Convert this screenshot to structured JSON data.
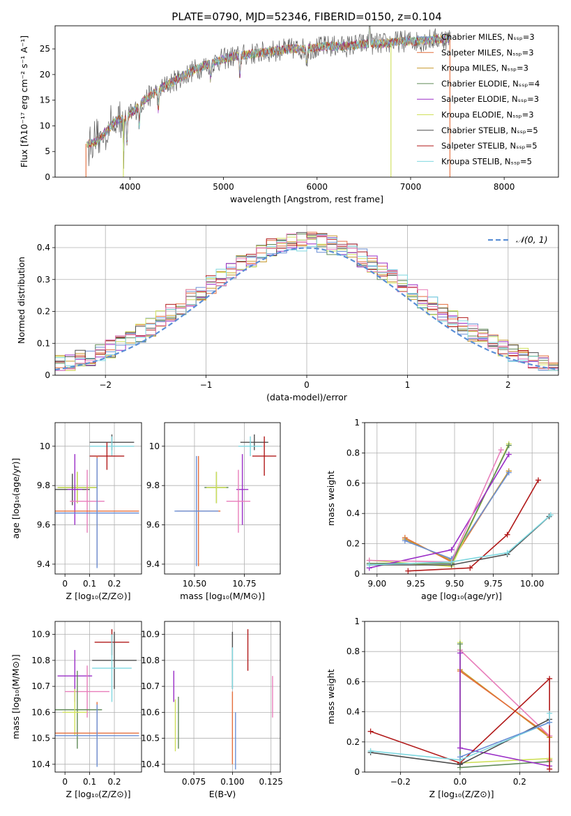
{
  "colors": {
    "Chabrier MILES": "#6a8fd6",
    "Salpeter MILES": "#e46e3c",
    "Kroupa MILES": "#c79a2e",
    "Chabrier ELODIE": "#5f8a57",
    "Salpeter ELODIE": "#9a2dc7",
    "Kroupa ELODIE": "#cfe05a",
    "Chabrier STELIB": "#4d4d4d",
    "Salpeter STELIB": "#b11919",
    "Kroupa STELIB": "#7fd8e0",
    "pink": "#e87ebb",
    "normal": "#5b8fd6"
  },
  "chart_data": [
    {
      "id": "spectrum",
      "type": "line",
      "title": "PLATE=0790, MJD=52346, FIBERID=0150, z=0.104",
      "xlabel": "wavelength [Angstrom, rest frame]",
      "ylabel": "Flux [fλ10⁻¹⁷ erg cm⁻² s⁻¹ A⁻¹]",
      "xlim": [
        3200,
        8580
      ],
      "ylim": [
        0,
        29.5
      ],
      "xticks": [
        4000,
        5000,
        6000,
        7000,
        8000
      ],
      "yticks": [
        0,
        5,
        10,
        15,
        20,
        25
      ],
      "grid": false,
      "legend_position": "right",
      "legend": [
        {
          "name": "Chabrier MILES, Nₛₛₚ=3",
          "color_key": "Chabrier MILES"
        },
        {
          "name": "Salpeter MILES, Nₛₛₚ=3",
          "color_key": "Salpeter MILES"
        },
        {
          "name": "Kroupa MILES, Nₛₛₚ=3",
          "color_key": "Kroupa MILES"
        },
        {
          "name": "Chabrier ELODIE, Nₛₛₚ=4",
          "color_key": "Chabrier ELODIE"
        },
        {
          "name": "Salpeter ELODIE, Nₛₛₚ=3",
          "color_key": "Salpeter ELODIE"
        },
        {
          "name": "Kroupa ELODIE, Nₛₛₚ=3",
          "color_key": "Kroupa ELODIE"
        },
        {
          "name": "Chabrier STELIB, Nₛₛₚ=5",
          "color_key": "Chabrier STELIB"
        },
        {
          "name": "Salpeter STELIB, Nₛₛₚ=5",
          "color_key": "Salpeter STELIB"
        },
        {
          "name": "Kroupa STELIB, Nₛₛₚ=5",
          "color_key": "Kroupa STELIB"
        }
      ],
      "continuum": [
        [
          3550,
          6.5
        ],
        [
          3650,
          7
        ],
        [
          3750,
          9
        ],
        [
          3850,
          11
        ],
        [
          3950,
          11.5
        ],
        [
          4050,
          13
        ],
        [
          4150,
          15
        ],
        [
          4300,
          17
        ],
        [
          4500,
          19
        ],
        [
          4700,
          21
        ],
        [
          4900,
          22.5
        ],
        [
          5100,
          23.5
        ],
        [
          5300,
          24
        ],
        [
          5500,
          24.5
        ],
        [
          5700,
          25
        ],
        [
          5900,
          25
        ],
        [
          6100,
          25.5
        ],
        [
          6300,
          25.5
        ],
        [
          6500,
          26
        ],
        [
          6700,
          26
        ],
        [
          6900,
          26.5
        ],
        [
          7100,
          26.5
        ],
        [
          7300,
          27
        ],
        [
          7400,
          27
        ]
      ],
      "dips": [
        {
          "series": "Salpeter MILES",
          "x": [
            3530,
            7420
          ]
        },
        {
          "series": "Kroupa ELODIE",
          "x": [
            3930,
            6790
          ]
        }
      ],
      "features": [
        [
          3933,
          -6
        ],
        [
          3968,
          -5
        ],
        [
          4101,
          -4
        ],
        [
          4304,
          -4
        ],
        [
          4861,
          -3
        ],
        [
          5175,
          -4
        ],
        [
          5890,
          -3
        ],
        [
          6563,
          5
        ]
      ]
    },
    {
      "id": "residuals",
      "type": "histogram",
      "xlabel": "(data-model)/error",
      "ylabel": "Normed distribution",
      "xlim": [
        -2.5,
        2.5
      ],
      "ylim": [
        0,
        0.47
      ],
      "xticks": [
        -2,
        -1,
        0,
        1,
        2
      ],
      "yticks": [
        0.0,
        0.1,
        0.2,
        0.3,
        0.4
      ],
      "grid": true,
      "legend_position": "top-right",
      "bin_width": 0.1,
      "reference_label": "𝒩(0, 1)"
    },
    {
      "id": "age-vs-Z",
      "type": "errorbar",
      "xlabel": "Z [log₁₀(Z/Z⊙)]",
      "ylabel": "age  [log₁₀(age/yr)]",
      "xlim": [
        -0.04,
        0.31
      ],
      "ylim": [
        9.35,
        10.12
      ],
      "xticks": [
        0.0,
        0.1,
        0.2
      ],
      "yticks": [
        9.4,
        9.6,
        9.8,
        10.0
      ],
      "grid": true,
      "points": [
        {
          "c": "Chabrier STELIB",
          "x": 0.19,
          "xerr": 0.09,
          "y": 10.02,
          "yerr": 0.04
        },
        {
          "c": "Kroupa STELIB",
          "x": 0.19,
          "xerr": 0.09,
          "y": 10.0,
          "yerr": 0.05
        },
        {
          "c": "Salpeter STELIB",
          "x": 0.17,
          "xerr": 0.07,
          "y": 9.95,
          "yerr": 0.07
        },
        {
          "c": "Chabrier ELODIE",
          "x": 0.05,
          "xerr": 0.08,
          "y": 9.79,
          "yerr": 0.08
        },
        {
          "c": "Kroupa ELODIE",
          "x": 0.05,
          "xerr": 0.08,
          "y": 9.79,
          "yerr": 0.08
        },
        {
          "c": "Chabrier STELIB",
          "x": 0.03,
          "xerr": 0.07,
          "y": 9.78,
          "yerr": 0.08
        },
        {
          "c": "Salpeter ELODIE",
          "x": 0.04,
          "xerr": 0.03,
          "y": 9.78,
          "yerr": 0.18
        },
        {
          "c": "pink",
          "x": 0.09,
          "xerr": 0.07,
          "y": 9.72,
          "yerr": 0.16
        },
        {
          "c": "Salpeter MILES",
          "x": 0.13,
          "xerr": 0.17,
          "y": 9.67,
          "yerr": 0.28
        },
        {
          "c": "Chabrier MILES",
          "x": 0.13,
          "xerr": 0.17,
          "y": 9.66,
          "yerr": 0.28
        }
      ]
    },
    {
      "id": "age-vs-mass",
      "type": "errorbar",
      "xlabel": "mass [log₁₀(M/M⊙)]",
      "ylabel": "",
      "xlim": [
        10.35,
        10.93
      ],
      "ylim": [
        9.35,
        10.12
      ],
      "xticks": [
        10.5,
        10.75
      ],
      "xticklabels": [
        "10.50",
        "10.75"
      ],
      "yticks": [
        9.4,
        9.6,
        9.8,
        10.0
      ],
      "grid": true,
      "points": [
        {
          "c": "Chabrier STELIB",
          "x": 10.8,
          "xerr": 0.07,
          "y": 10.02,
          "yerr": 0.04
        },
        {
          "c": "Kroupa STELIB",
          "x": 10.78,
          "xerr": 0.06,
          "y": 10.0,
          "yerr": 0.05
        },
        {
          "c": "Salpeter STELIB",
          "x": 10.85,
          "xerr": 0.06,
          "y": 9.95,
          "yerr": 0.1
        },
        {
          "c": "Chabrier ELODIE",
          "x": 10.61,
          "xerr": 0.06,
          "y": 9.79,
          "yerr": 0.08
        },
        {
          "c": "Kroupa ELODIE",
          "x": 10.61,
          "xerr": 0.05,
          "y": 9.79,
          "yerr": 0.08
        },
        {
          "c": "Salpeter ELODIE",
          "x": 10.74,
          "xerr": 0.03,
          "y": 9.78,
          "yerr": 0.18
        },
        {
          "c": "pink",
          "x": 10.72,
          "xerr": 0.06,
          "y": 9.72,
          "yerr": 0.16
        },
        {
          "c": "Salpeter MILES",
          "x": 10.52,
          "xerr": 0.11,
          "y": 9.67,
          "yerr": 0.28
        },
        {
          "c": "Chabrier MILES",
          "x": 10.51,
          "xerr": 0.11,
          "y": 9.67,
          "yerr": 0.28
        }
      ]
    },
    {
      "id": "weight-vs-age",
      "type": "line",
      "xlabel": "age  [log₁₀(age/yr)]",
      "ylabel": "mass weight",
      "xlim": [
        8.92,
        10.17
      ],
      "ylim": [
        0,
        1.0
      ],
      "xticks": [
        9.0,
        9.25,
        9.5,
        9.75,
        10.0
      ],
      "xticklabels": [
        "9.00",
        "9.25",
        "9.50",
        "9.75",
        "10.00"
      ],
      "yticks": [
        0.0,
        0.2,
        0.4,
        0.6,
        0.8,
        1.0
      ],
      "grid": true,
      "series": [
        {
          "c": "Salpeter MILES",
          "x": [
            9.18,
            9.48,
            9.85
          ],
          "y": [
            0.24,
            0.08,
            0.68
          ]
        },
        {
          "c": "Kroupa MILES",
          "x": [
            9.18,
            9.48,
            9.85
          ],
          "y": [
            0.23,
            0.09,
            0.68
          ]
        },
        {
          "c": "Chabrier MILES",
          "x": [
            9.18,
            9.48,
            9.85
          ],
          "y": [
            0.22,
            0.1,
            0.67
          ]
        },
        {
          "c": "Kroupa ELODIE",
          "x": [
            8.95,
            9.48,
            9.85
          ],
          "y": [
            0.09,
            0.05,
            0.86
          ]
        },
        {
          "c": "Chabrier ELODIE",
          "x": [
            8.95,
            9.48,
            9.85
          ],
          "y": [
            0.07,
            0.07,
            0.85
          ]
        },
        {
          "c": "Salpeter ELODIE",
          "x": [
            8.95,
            9.48,
            9.85
          ],
          "y": [
            0.04,
            0.16,
            0.79
          ]
        },
        {
          "c": "pink",
          "x": [
            8.95,
            9.48,
            9.8
          ],
          "y": [
            0.09,
            0.08,
            0.82
          ]
        },
        {
          "c": "Salpeter STELIB",
          "x": [
            9.2,
            9.6,
            9.84,
            10.04
          ],
          "y": [
            0.02,
            0.04,
            0.26,
            0.62
          ]
        },
        {
          "c": "Chabrier STELIB",
          "x": [
            8.95,
            9.48,
            9.84,
            10.11
          ],
          "y": [
            0.06,
            0.06,
            0.13,
            0.38
          ]
        },
        {
          "c": "Kroupa STELIB",
          "x": [
            8.95,
            9.48,
            9.84,
            10.12
          ],
          "y": [
            0.06,
            0.08,
            0.14,
            0.39
          ]
        }
      ]
    },
    {
      "id": "mass-vs-Z",
      "type": "errorbar",
      "xlabel": "Z [log₁₀(Z/Z⊙)]",
      "ylabel": "mass [log₁₀(M/M⊙)]",
      "xlim": [
        -0.04,
        0.31
      ],
      "ylim": [
        10.37,
        10.95
      ],
      "xticks": [
        0.0,
        0.1,
        0.2
      ],
      "yticks": [
        10.4,
        10.5,
        10.6,
        10.7,
        10.8,
        10.9
      ],
      "grid": true,
      "points": [
        {
          "c": "Salpeter STELIB",
          "x": 0.19,
          "xerr": 0.07,
          "y": 10.87,
          "yerr": 0.05
        },
        {
          "c": "Chabrier STELIB",
          "x": 0.2,
          "xerr": 0.09,
          "y": 10.8,
          "yerr": 0.11
        },
        {
          "c": "Kroupa STELIB",
          "x": 0.19,
          "xerr": 0.08,
          "y": 10.77,
          "yerr": 0.13
        },
        {
          "c": "Salpeter ELODIE",
          "x": 0.04,
          "xerr": 0.07,
          "y": 10.74,
          "yerr": 0.1
        },
        {
          "c": "pink",
          "x": 0.09,
          "xerr": 0.09,
          "y": 10.68,
          "yerr": 0.1
        },
        {
          "c": "Chabrier ELODIE",
          "x": 0.05,
          "xerr": 0.1,
          "y": 10.61,
          "yerr": 0.15
        },
        {
          "c": "Kroupa ELODIE",
          "x": 0.04,
          "xerr": 0.05,
          "y": 10.6,
          "yerr": 0.09
        },
        {
          "c": "Salpeter MILES",
          "x": 0.13,
          "xerr": 0.17,
          "y": 10.52,
          "yerr": 0.12
        },
        {
          "c": "Chabrier MILES",
          "x": 0.13,
          "xerr": 0.17,
          "y": 10.51,
          "yerr": 0.12
        }
      ]
    },
    {
      "id": "mass-vs-EBV",
      "type": "errorbar",
      "xlabel": "E(B-V)",
      "ylabel": "",
      "xlim": [
        0.056,
        0.131
      ],
      "ylim": [
        10.37,
        10.95
      ],
      "xticks": [
        0.075,
        0.1,
        0.125
      ],
      "xticklabels": [
        "0.075",
        "0.100",
        "0.125"
      ],
      "yticks": [
        10.4,
        10.5,
        10.6,
        10.7,
        10.8,
        10.9
      ],
      "grid": true,
      "points": [
        {
          "c": "Salpeter STELIB",
          "x": 0.11,
          "y": 10.84,
          "yerr": 0.08
        },
        {
          "c": "Chabrier STELIB",
          "x": 0.1,
          "y": 10.8,
          "yerr": 0.11
        },
        {
          "c": "Kroupa STELIB",
          "x": 0.1,
          "y": 10.77,
          "yerr": 0.08
        },
        {
          "c": "Salpeter ELODIE",
          "x": 0.062,
          "y": 10.7,
          "yerr": 0.06
        },
        {
          "c": "pink",
          "x": 0.126,
          "y": 10.66,
          "yerr": 0.08
        },
        {
          "c": "Chabrier ELODIE",
          "x": 0.065,
          "y": 10.56,
          "yerr": 0.1
        },
        {
          "c": "Kroupa ELODIE",
          "x": 0.063,
          "y": 10.55,
          "yerr": 0.1
        },
        {
          "c": "Salpeter MILES",
          "x": 0.1,
          "y": 10.54,
          "yerr": 0.14
        },
        {
          "c": "Chabrier MILES",
          "x": 0.102,
          "y": 10.49,
          "yerr": 0.11
        }
      ]
    },
    {
      "id": "weight-vs-Z",
      "type": "line",
      "xlabel": "Z [log₁₀(Z/Z⊙)]",
      "ylabel": "mass weight",
      "xlim": [
        -0.32,
        0.33
      ],
      "ylim": [
        0,
        1.0
      ],
      "xticks": [
        -0.2,
        0.0,
        0.2
      ],
      "xticklabels": [
        "−0.2",
        "0.0",
        "0.2"
      ],
      "yticks": [
        0.0,
        0.2,
        0.4,
        0.6,
        0.8,
        1.0
      ],
      "grid": true,
      "series": [
        {
          "c": "Kroupa MILES",
          "x": [
            0.0,
            0.3,
            0.3
          ],
          "y": [
            0.68,
            0.23,
            0.09
          ]
        },
        {
          "c": "Salpeter MILES",
          "x": [
            0.0,
            0.3,
            0.3
          ],
          "y": [
            0.67,
            0.24,
            0.08
          ]
        },
        {
          "c": "pink",
          "x": [
            0.0,
            0.3
          ],
          "y": [
            0.81,
            0.24
          ]
        },
        {
          "c": "Kroupa ELODIE",
          "x": [
            0.0,
            0.0,
            0.3
          ],
          "y": [
            0.86,
            0.06,
            0.09
          ]
        },
        {
          "c": "Chabrier ELODIE",
          "x": [
            0.0,
            0.0,
            0.3
          ],
          "y": [
            0.85,
            0.03,
            0.07
          ]
        },
        {
          "c": "Salpeter ELODIE",
          "x": [
            0.0,
            0.0,
            0.3
          ],
          "y": [
            0.79,
            0.16,
            0.04
          ]
        },
        {
          "c": "Salpeter STELIB",
          "x": [
            -0.3,
            0.0,
            0.3,
            0.3
          ],
          "y": [
            0.27,
            0.06,
            0.62,
            0.02
          ]
        },
        {
          "c": "Chabrier STELIB",
          "x": [
            -0.3,
            0.0,
            0.3
          ],
          "y": [
            0.13,
            0.05,
            0.35
          ]
        },
        {
          "c": "Kroupa STELIB",
          "x": [
            -0.3,
            0.0,
            0.3,
            0.3
          ],
          "y": [
            0.14,
            0.08,
            0.33,
            0.39
          ]
        },
        {
          "c": "Chabrier MILES",
          "x": [
            0.0,
            0.3
          ],
          "y": [
            0.1,
            0.33
          ]
        }
      ]
    }
  ]
}
